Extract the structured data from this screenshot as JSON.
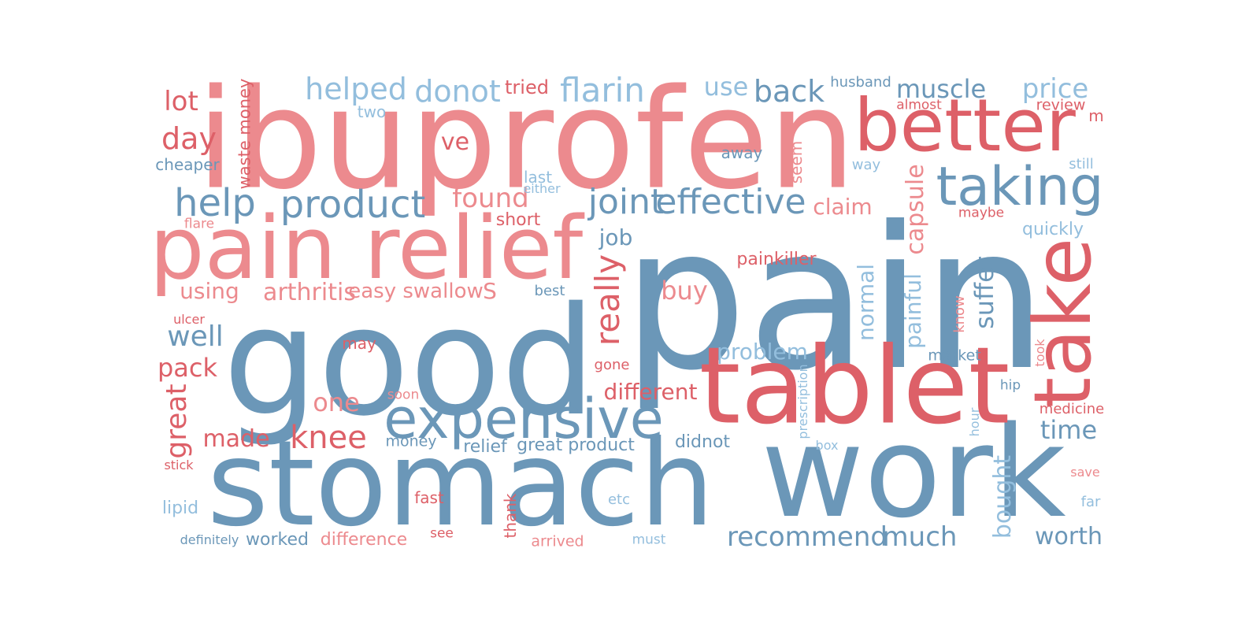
{
  "colors": {
    "blue": "#6b97b8",
    "light_blue": "#93bedd",
    "red": "#dd6068",
    "pink": "#ec8a8e",
    "background": "#ffffff"
  },
  "words": [
    {
      "text": "pain",
      "color": "blue"
    },
    {
      "text": "ibuprofen",
      "color": "pink"
    },
    {
      "text": "good",
      "color": "blue"
    },
    {
      "text": "stomach",
      "color": "blue"
    },
    {
      "text": "work",
      "color": "blue"
    },
    {
      "text": "tablet",
      "color": "red"
    },
    {
      "text": "pain relief",
      "color": "pink"
    },
    {
      "text": "better",
      "color": "red"
    },
    {
      "text": "take",
      "color": "red"
    },
    {
      "text": "taking",
      "color": "blue"
    },
    {
      "text": "expensive",
      "color": "blue"
    },
    {
      "text": "product",
      "color": "blue"
    },
    {
      "text": "help",
      "color": "blue"
    },
    {
      "text": "joint",
      "color": "blue"
    },
    {
      "text": "effective",
      "color": "blue"
    },
    {
      "text": "knee",
      "color": "red"
    },
    {
      "text": "recommend",
      "color": "blue"
    },
    {
      "text": "much",
      "color": "blue"
    },
    {
      "text": "helped",
      "color": "light_blue"
    },
    {
      "text": "donot",
      "color": "light_blue"
    },
    {
      "text": "flarin",
      "color": "light_blue"
    },
    {
      "text": "back",
      "color": "blue"
    },
    {
      "text": "muscle",
      "color": "blue"
    },
    {
      "text": "price",
      "color": "light_blue"
    },
    {
      "text": "use",
      "color": "light_blue"
    },
    {
      "text": "lot",
      "color": "red"
    },
    {
      "text": "day",
      "color": "red"
    },
    {
      "text": "found",
      "color": "pink"
    },
    {
      "text": "really",
      "color": "red"
    },
    {
      "text": "arthritis",
      "color": "pink"
    },
    {
      "text": "well",
      "color": "blue"
    },
    {
      "text": "pack",
      "color": "red"
    },
    {
      "text": "great",
      "color": "red"
    },
    {
      "text": "one",
      "color": "pink"
    },
    {
      "text": "made",
      "color": "red"
    },
    {
      "text": "different",
      "color": "red"
    },
    {
      "text": "problem",
      "color": "light_blue"
    },
    {
      "text": "normal",
      "color": "light_blue"
    },
    {
      "text": "painful",
      "color": "light_blue"
    },
    {
      "text": "capsule",
      "color": "pink"
    },
    {
      "text": "suffer",
      "color": "blue"
    },
    {
      "text": "claim",
      "color": "pink"
    },
    {
      "text": "buy",
      "color": "pink"
    },
    {
      "text": "time",
      "color": "blue"
    },
    {
      "text": "bought",
      "color": "light_blue"
    },
    {
      "text": "worth",
      "color": "blue"
    },
    {
      "text": "job",
      "color": "blue"
    },
    {
      "text": "ve",
      "color": "red"
    },
    {
      "text": "easy swallow",
      "color": "pink"
    },
    {
      "text": "S",
      "color": "pink"
    },
    {
      "text": "using",
      "color": "pink"
    },
    {
      "text": "quickly",
      "color": "light_blue"
    },
    {
      "text": "painkiller",
      "color": "red"
    },
    {
      "text": "tried",
      "color": "red"
    },
    {
      "text": "waste money",
      "color": "red"
    },
    {
      "text": "two",
      "color": "light_blue"
    },
    {
      "text": "cheaper",
      "color": "blue"
    },
    {
      "text": "last",
      "color": "light_blue"
    },
    {
      "text": "either",
      "color": "light_blue"
    },
    {
      "text": "short",
      "color": "red"
    },
    {
      "text": "flare",
      "color": "pink"
    },
    {
      "text": "away",
      "color": "blue"
    },
    {
      "text": "seem",
      "color": "pink"
    },
    {
      "text": "husband",
      "color": "blue"
    },
    {
      "text": "almost",
      "color": "red"
    },
    {
      "text": "review",
      "color": "red"
    },
    {
      "text": "m",
      "color": "red"
    },
    {
      "text": "way",
      "color": "light_blue"
    },
    {
      "text": "still",
      "color": "light_blue"
    },
    {
      "text": "maybe",
      "color": "red"
    },
    {
      "text": "best",
      "color": "blue"
    },
    {
      "text": "ulcer",
      "color": "red"
    },
    {
      "text": "may",
      "color": "red"
    },
    {
      "text": "gone",
      "color": "red"
    },
    {
      "text": "know",
      "color": "pink"
    },
    {
      "text": "market",
      "color": "blue"
    },
    {
      "text": "took",
      "color": "pink"
    },
    {
      "text": "hip",
      "color": "blue"
    },
    {
      "text": "prescription",
      "color": "light_blue"
    },
    {
      "text": "medicine",
      "color": "red"
    },
    {
      "text": "hour",
      "color": "light_blue"
    },
    {
      "text": "box",
      "color": "light_blue"
    },
    {
      "text": "save",
      "color": "pink"
    },
    {
      "text": "far",
      "color": "light_blue"
    },
    {
      "text": "soon",
      "color": "pink"
    },
    {
      "text": "money",
      "color": "blue"
    },
    {
      "text": "relief",
      "color": "blue"
    },
    {
      "text": "great product",
      "color": "blue"
    },
    {
      "text": "didnot",
      "color": "blue"
    },
    {
      "text": "stick",
      "color": "red"
    },
    {
      "text": "lipid",
      "color": "light_blue"
    },
    {
      "text": "fast",
      "color": "red"
    },
    {
      "text": "thank",
      "color": "red"
    },
    {
      "text": "etc",
      "color": "light_blue"
    },
    {
      "text": "definitely",
      "color": "blue"
    },
    {
      "text": "worked",
      "color": "blue"
    },
    {
      "text": "difference",
      "color": "pink"
    },
    {
      "text": "see",
      "color": "red"
    },
    {
      "text": "arrived",
      "color": "pink"
    },
    {
      "text": "must",
      "color": "light_blue"
    }
  ]
}
